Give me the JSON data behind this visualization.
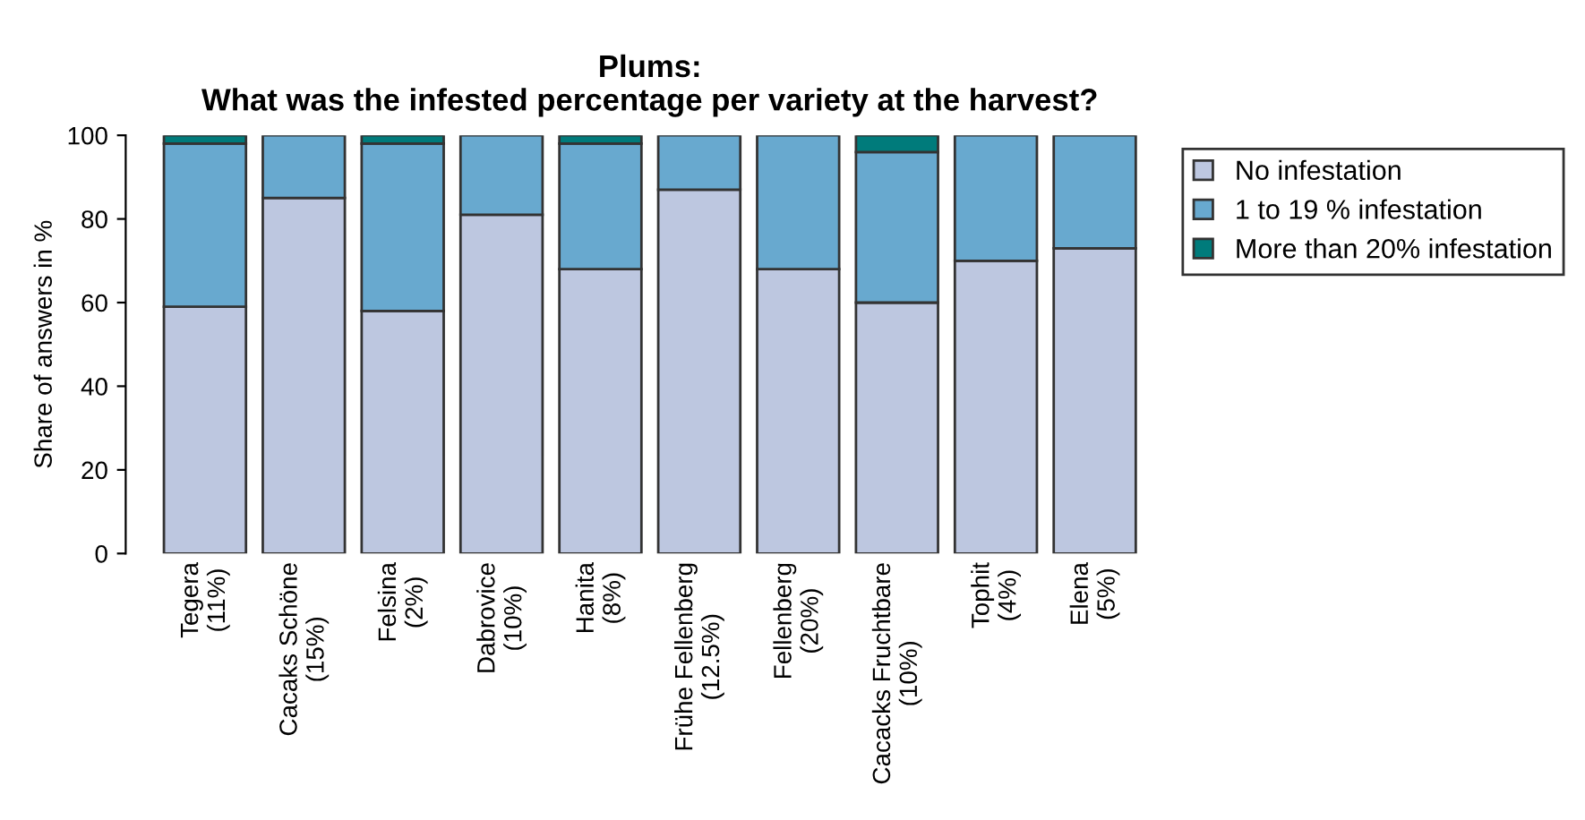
{
  "chart_data": {
    "type": "bar",
    "title": "Plums:\nWhat was the infested percentage per variety at the harvest?",
    "ylabel": "Share of answers in %",
    "categories": [
      "Tegera\n(11%)",
      "Cacaks Schöne\n(15%)",
      "Felsina\n(2%)",
      "Dabrovice\n(10%)",
      "Hanita\n(8%)",
      "Frühe Fellenberg\n(12.5%)",
      "Fellenberg\n(20%)",
      "Cacacks Fruchtbare\n(10%)",
      "Tophit\n(4%)",
      "Elena\n(5%)"
    ],
    "stacked": true,
    "series": [
      {
        "name": "No infestation",
        "color": "#bdc7e0",
        "values": [
          59,
          85,
          58,
          81,
          68,
          87,
          68,
          60,
          70,
          73
        ]
      },
      {
        "name": "1 to 19 % infestation",
        "color": "#68a9cf",
        "values": [
          39,
          15,
          40,
          19,
          30,
          13,
          32,
          36,
          30,
          27
        ]
      },
      {
        "name": "More than 20% infestation",
        "color": "#007b7b",
        "values": [
          2,
          0,
          2,
          0,
          2,
          0,
          0,
          4,
          0,
          0
        ]
      }
    ],
    "ylim": [
      0,
      100
    ],
    "yticks": [
      0,
      20,
      40,
      60,
      80,
      100
    ],
    "legend": "right"
  }
}
